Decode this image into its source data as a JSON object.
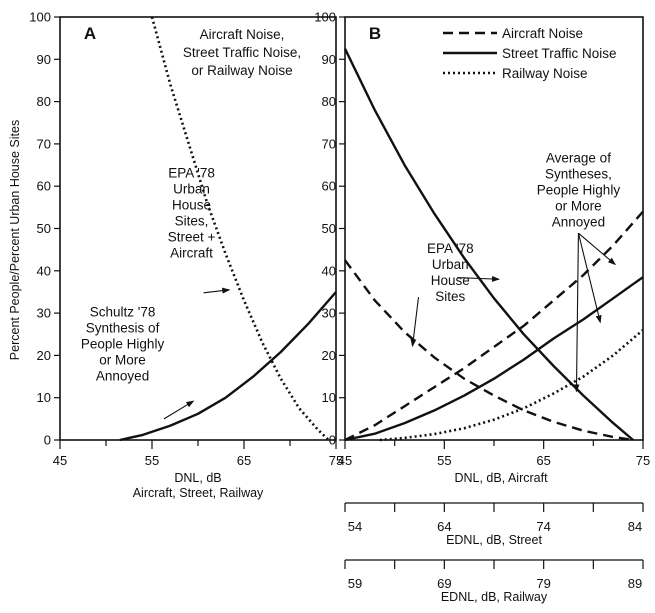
{
  "y_axis_label": "Percent People/Percent Urban House Sites",
  "chart_data": [
    {
      "type": "line",
      "panel": "A",
      "panel_label": "A",
      "xlim": [
        45,
        75
      ],
      "ylim": [
        0,
        100
      ],
      "x_ticks": [
        "45",
        "55",
        "65",
        "75"
      ],
      "y_ticks": [
        "0",
        "10",
        "20",
        "30",
        "40",
        "50",
        "60",
        "70",
        "80",
        "90",
        "100"
      ],
      "xlabel_lines": [
        "DNL, dB",
        "Aircraft, Street, Railway"
      ],
      "header_lines": [
        "Aircraft Noise,",
        "Street Traffic Noise,",
        "or Railway Noise"
      ],
      "series": [
        {
          "style": "solid",
          "x": [
            51.5,
            54,
            57,
            60,
            63,
            66,
            69,
            72,
            75
          ],
          "y": [
            0,
            1.2,
            3.4,
            6.2,
            10.0,
            15.0,
            20.8,
            27.5,
            35
          ]
        },
        {
          "style": "dotted",
          "x": [
            55,
            57,
            59,
            61,
            63,
            65,
            67,
            69,
            71,
            73,
            74.2
          ],
          "y": [
            100,
            84,
            70,
            56,
            44,
            33,
            23,
            14.5,
            7.5,
            2.5,
            0
          ]
        }
      ],
      "annotations": [
        {
          "lines": [
            "EPA '78",
            "Urban",
            "House",
            "Sites,",
            "Street +",
            "Aircraft"
          ],
          "text_x": 59.3,
          "text_y": 62,
          "arrows": [
            {
              "from": [
                60.6,
                34.8
              ],
              "to": [
                63.4,
                35.5
              ]
            }
          ]
        },
        {
          "lines": [
            "Schultz '78",
            "Synthesis of",
            "People Highly",
            "or More",
            "Annoyed"
          ],
          "text_x": 51.8,
          "text_y": 29.2,
          "arrows": [
            {
              "from": [
                56.3,
                5.0
              ],
              "to": [
                59.5,
                9.2
              ]
            }
          ]
        }
      ]
    },
    {
      "type": "line",
      "panel": "B",
      "panel_label": "B",
      "xlim": [
        45,
        75
      ],
      "ylim": [
        0,
        100
      ],
      "x_ticks": [
        "45",
        "55",
        "65",
        "75"
      ],
      "y_ticks": [
        "0",
        "10",
        "20",
        "30",
        "40",
        "50",
        "60",
        "70",
        "80",
        "90",
        "100"
      ],
      "xlabel_lines": [
        "DNL, dB, Aircraft"
      ],
      "legend": {
        "placement": "top-right",
        "entries": [
          {
            "label": "Aircraft Noise",
            "style": "dashed"
          },
          {
            "label": "Street Traffic Noise",
            "style": "solid"
          },
          {
            "label": "Railway Noise",
            "style": "dotted"
          }
        ]
      },
      "series": [
        {
          "name": "Aircraft Noise",
          "style": "dashed",
          "group": "synthesis",
          "x": [
            45,
            48,
            51,
            54,
            57,
            60,
            63,
            66,
            69,
            72,
            75
          ],
          "y": [
            0,
            3.5,
            8,
            12.5,
            17,
            22,
            27,
            33,
            39,
            46,
            54
          ]
        },
        {
          "name": "Street Traffic Noise",
          "style": "solid",
          "group": "synthesis",
          "x": [
            45,
            48,
            51,
            54,
            57,
            60,
            63,
            66,
            69,
            72,
            75
          ],
          "y": [
            0,
            1.5,
            4,
            7,
            10.5,
            14.5,
            19,
            24,
            28.5,
            33.5,
            38.5
          ]
        },
        {
          "name": "Railway Noise",
          "style": "dotted",
          "group": "synthesis",
          "x": [
            48.5,
            51,
            54,
            57,
            60,
            63,
            66,
            69,
            72,
            75
          ],
          "y": [
            0,
            0.5,
            1.4,
            2.8,
            4.8,
            7.5,
            11,
            15,
            20,
            26
          ]
        },
        {
          "name": "Aircraft Noise",
          "style": "dashed",
          "group": "epa",
          "x": [
            45,
            48,
            51,
            54,
            57,
            60,
            63,
            66,
            69,
            72,
            74
          ],
          "y": [
            42.5,
            33,
            25.5,
            19.5,
            14.5,
            10.5,
            7.0,
            4.3,
            2.2,
            0.7,
            0
          ]
        },
        {
          "name": "Street Traffic Noise",
          "style": "solid",
          "group": "epa",
          "x": [
            45,
            48,
            51,
            54,
            57,
            60,
            63,
            66,
            69,
            72,
            74
          ],
          "y": [
            92.5,
            78,
            65,
            53.5,
            43,
            33.5,
            25,
            17.5,
            10.5,
            4.0,
            0
          ]
        }
      ],
      "annotations": [
        {
          "lines": [
            "EPA '78",
            "Urban",
            "House",
            "Sites"
          ],
          "text_x": 55.6,
          "text_y": 44.2,
          "arrows": [
            {
              "from": [
                56.3,
                38.4
              ],
              "to": [
                60.5,
                38.0
              ]
            },
            {
              "from": [
                52.4,
                33.8
              ],
              "to": [
                51.8,
                22.2
              ]
            }
          ]
        },
        {
          "lines": [
            "Average of",
            "Syntheses,",
            "People Highly",
            "or More",
            "Annoyed"
          ],
          "text_x": 68.5,
          "text_y": 65.6,
          "arrows": [
            {
              "from": [
                68.5,
                48.9
              ],
              "to": [
                72.2,
                41.5
              ]
            },
            {
              "from": [
                68.5,
                48.9
              ],
              "to": [
                70.7,
                27.8
              ]
            },
            {
              "from": [
                68.5,
                48.9
              ],
              "to": [
                68.3,
                11.5
              ]
            }
          ]
        }
      ]
    }
  ],
  "secondary_axes": [
    {
      "label": "EDNL, dB, Street",
      "ticks": [
        "54",
        "64",
        "74",
        "84"
      ]
    },
    {
      "label": "EDNL, dB, Railway",
      "ticks": [
        "59",
        "69",
        "79",
        "89"
      ]
    }
  ]
}
